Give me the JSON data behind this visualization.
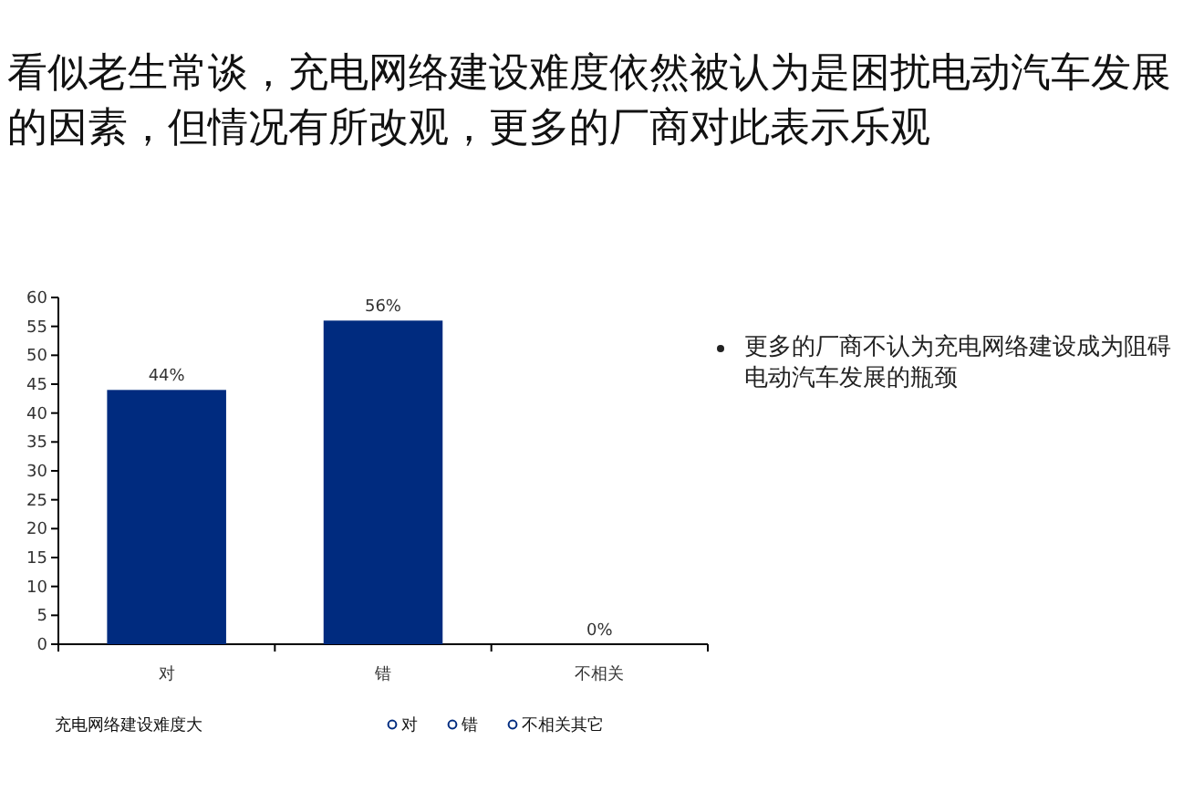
{
  "chart_data": {
    "type": "bar",
    "title": "看似老生常谈，充电网络建设难度依然被认为是困扰电动汽车发展的因素，但情况有所改观，更多的厂商对此表示乐观",
    "categories": [
      "对",
      "错",
      "不相关"
    ],
    "series": [
      {
        "name": "对",
        "color": "#002b7f",
        "values": [
          44,
          null,
          null
        ],
        "value_labels": [
          "44%",
          null,
          null
        ]
      },
      {
        "name": "错",
        "color": "#002b7f",
        "values": [
          null,
          56,
          null
        ],
        "value_labels": [
          null,
          "56%",
          null
        ]
      },
      {
        "name": "不相关其它",
        "color": "#002b7f",
        "values": [
          null,
          null,
          0
        ],
        "value_labels": [
          null,
          null,
          "0%"
        ]
      }
    ],
    "ylim": [
      0,
      60
    ],
    "yticks": [
      0,
      5,
      10,
      15,
      20,
      25,
      30,
      35,
      40,
      45,
      50,
      55,
      60
    ],
    "legend": "bottom",
    "legend_title": "充电网络建设难度大",
    "annotations": [
      "更多的厂商不认为充电网络建设成为阻碍电动汽车发展的瓶颈"
    ]
  }
}
